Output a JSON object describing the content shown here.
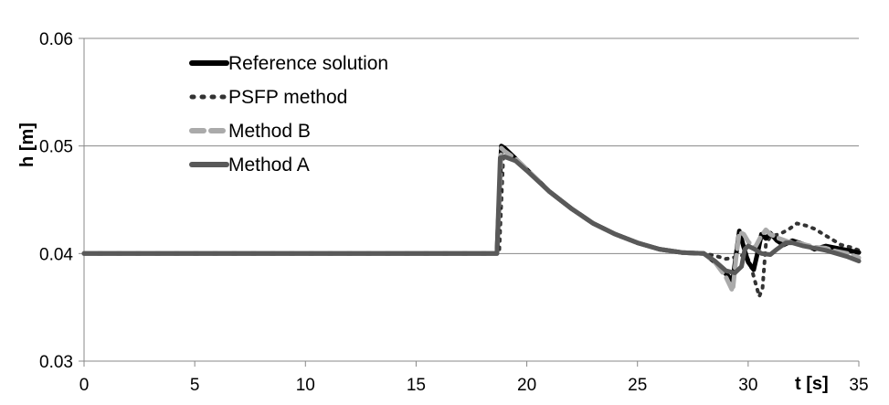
{
  "chart_data": {
    "type": "line",
    "xlabel": "t [s]",
    "ylabel": "h [m]",
    "xlim": [
      0,
      35
    ],
    "ylim": [
      0.03,
      0.06
    ],
    "xticks": [
      0,
      5,
      10,
      15,
      20,
      25,
      30,
      35
    ],
    "yticks": [
      0.03,
      0.04,
      0.05,
      0.06
    ],
    "xtick_labels": [
      "0",
      "5",
      "10",
      "15",
      "20",
      "25",
      "30",
      "35"
    ],
    "ytick_labels": [
      "0.03",
      "0.04",
      "0.05",
      "0.06"
    ],
    "grid": "horizontal",
    "legend_position": "top-left",
    "series": [
      {
        "name": "Reference solution",
        "color": "#000000",
        "style": "solid",
        "width": 5,
        "points": [
          [
            0,
            0.04
          ],
          [
            18.65,
            0.04
          ],
          [
            18.85,
            0.05
          ],
          [
            19.0,
            0.0498
          ],
          [
            19.5,
            0.0488
          ],
          [
            20,
            0.0478
          ],
          [
            21,
            0.0458
          ],
          [
            22,
            0.0442
          ],
          [
            23,
            0.0428
          ],
          [
            24,
            0.0418
          ],
          [
            25,
            0.041
          ],
          [
            26,
            0.0404
          ],
          [
            27,
            0.0401
          ],
          [
            28,
            0.04
          ],
          [
            28.5,
            0.0392
          ],
          [
            29,
            0.0381
          ],
          [
            29.3,
            0.0375
          ],
          [
            29.45,
            0.0398
          ],
          [
            29.6,
            0.0421
          ],
          [
            29.8,
            0.0406
          ],
          [
            30,
            0.0392
          ],
          [
            30.25,
            0.0385
          ],
          [
            30.45,
            0.0403
          ],
          [
            30.6,
            0.0418
          ],
          [
            30.8,
            0.0414
          ],
          [
            31,
            0.0419
          ],
          [
            31.3,
            0.0412
          ],
          [
            31.6,
            0.0408
          ],
          [
            32,
            0.0412
          ],
          [
            32.3,
            0.041
          ],
          [
            32.7,
            0.0407
          ],
          [
            33,
            0.0404
          ],
          [
            33.5,
            0.0407
          ],
          [
            34,
            0.0405
          ],
          [
            34.5,
            0.0403
          ],
          [
            35,
            0.0401
          ]
        ]
      },
      {
        "name": "PSFP method",
        "color": "#333333",
        "style": "dotted",
        "width": 4,
        "points": [
          [
            0,
            0.04
          ],
          [
            18.75,
            0.04
          ],
          [
            18.95,
            0.0496
          ],
          [
            19.5,
            0.0488
          ],
          [
            20,
            0.0478
          ],
          [
            21,
            0.0458
          ],
          [
            22,
            0.0442
          ],
          [
            23,
            0.0428
          ],
          [
            24,
            0.0418
          ],
          [
            25,
            0.041
          ],
          [
            26,
            0.0404
          ],
          [
            27,
            0.0401
          ],
          [
            28,
            0.04
          ],
          [
            28.5,
            0.0398
          ],
          [
            29,
            0.0395
          ],
          [
            29.5,
            0.0397
          ],
          [
            29.9,
            0.0399
          ],
          [
            30.1,
            0.039
          ],
          [
            30.3,
            0.0375
          ],
          [
            30.5,
            0.036
          ],
          [
            30.65,
            0.0368
          ],
          [
            30.8,
            0.0408
          ],
          [
            31,
            0.0416
          ],
          [
            31.4,
            0.0418
          ],
          [
            31.8,
            0.0422
          ],
          [
            32.2,
            0.0428
          ],
          [
            32.6,
            0.0426
          ],
          [
            33,
            0.0423
          ],
          [
            33.4,
            0.0418
          ],
          [
            33.8,
            0.0413
          ],
          [
            34.2,
            0.0408
          ],
          [
            34.6,
            0.0406
          ],
          [
            35,
            0.0403
          ]
        ]
      },
      {
        "name": "Method B",
        "color": "#aaaaaa",
        "style": "dashed",
        "width": 5,
        "points": [
          [
            0,
            0.04
          ],
          [
            18.65,
            0.04
          ],
          [
            18.85,
            0.0498
          ],
          [
            19.0,
            0.0495
          ],
          [
            19.5,
            0.0488
          ],
          [
            20,
            0.0478
          ],
          [
            21,
            0.0458
          ],
          [
            22,
            0.0442
          ],
          [
            23,
            0.0428
          ],
          [
            24,
            0.0418
          ],
          [
            25,
            0.041
          ],
          [
            26,
            0.0404
          ],
          [
            27,
            0.0401
          ],
          [
            28,
            0.04
          ],
          [
            28.5,
            0.0392
          ],
          [
            29,
            0.0378
          ],
          [
            29.3,
            0.0365
          ],
          [
            29.45,
            0.0395
          ],
          [
            29.6,
            0.042
          ],
          [
            29.8,
            0.0418
          ],
          [
            30,
            0.0411
          ],
          [
            30.3,
            0.0405
          ],
          [
            30.55,
            0.0415
          ],
          [
            30.8,
            0.0422
          ],
          [
            31,
            0.0418
          ],
          [
            31.4,
            0.0414
          ],
          [
            31.8,
            0.0411
          ],
          [
            32.2,
            0.041
          ],
          [
            32.6,
            0.0408
          ],
          [
            33,
            0.0406
          ],
          [
            33.5,
            0.0405
          ],
          [
            34,
            0.0402
          ],
          [
            34.5,
            0.04
          ],
          [
            35,
            0.0396
          ]
        ]
      },
      {
        "name": "Method A",
        "color": "#595959",
        "style": "solid",
        "width": 5,
        "points": [
          [
            0,
            0.04
          ],
          [
            18.65,
            0.04
          ],
          [
            18.8,
            0.0489
          ],
          [
            19.0,
            0.049
          ],
          [
            19.5,
            0.0486
          ],
          [
            20,
            0.0477
          ],
          [
            21,
            0.0458
          ],
          [
            22,
            0.0442
          ],
          [
            23,
            0.0428
          ],
          [
            24,
            0.0418
          ],
          [
            25,
            0.041
          ],
          [
            26,
            0.0404
          ],
          [
            27,
            0.0401
          ],
          [
            28,
            0.04
          ],
          [
            28.5,
            0.0393
          ],
          [
            29,
            0.0384
          ],
          [
            29.4,
            0.0382
          ],
          [
            29.7,
            0.0388
          ],
          [
            29.85,
            0.0404
          ],
          [
            30,
            0.0407
          ],
          [
            30.3,
            0.0404
          ],
          [
            30.6,
            0.04
          ],
          [
            31,
            0.0399
          ],
          [
            31.3,
            0.0404
          ],
          [
            31.7,
            0.041
          ],
          [
            32,
            0.041
          ],
          [
            32.5,
            0.0407
          ],
          [
            33,
            0.0405
          ],
          [
            33.5,
            0.0403
          ],
          [
            34,
            0.04
          ],
          [
            34.5,
            0.0397
          ],
          [
            35,
            0.0393
          ]
        ]
      }
    ]
  }
}
